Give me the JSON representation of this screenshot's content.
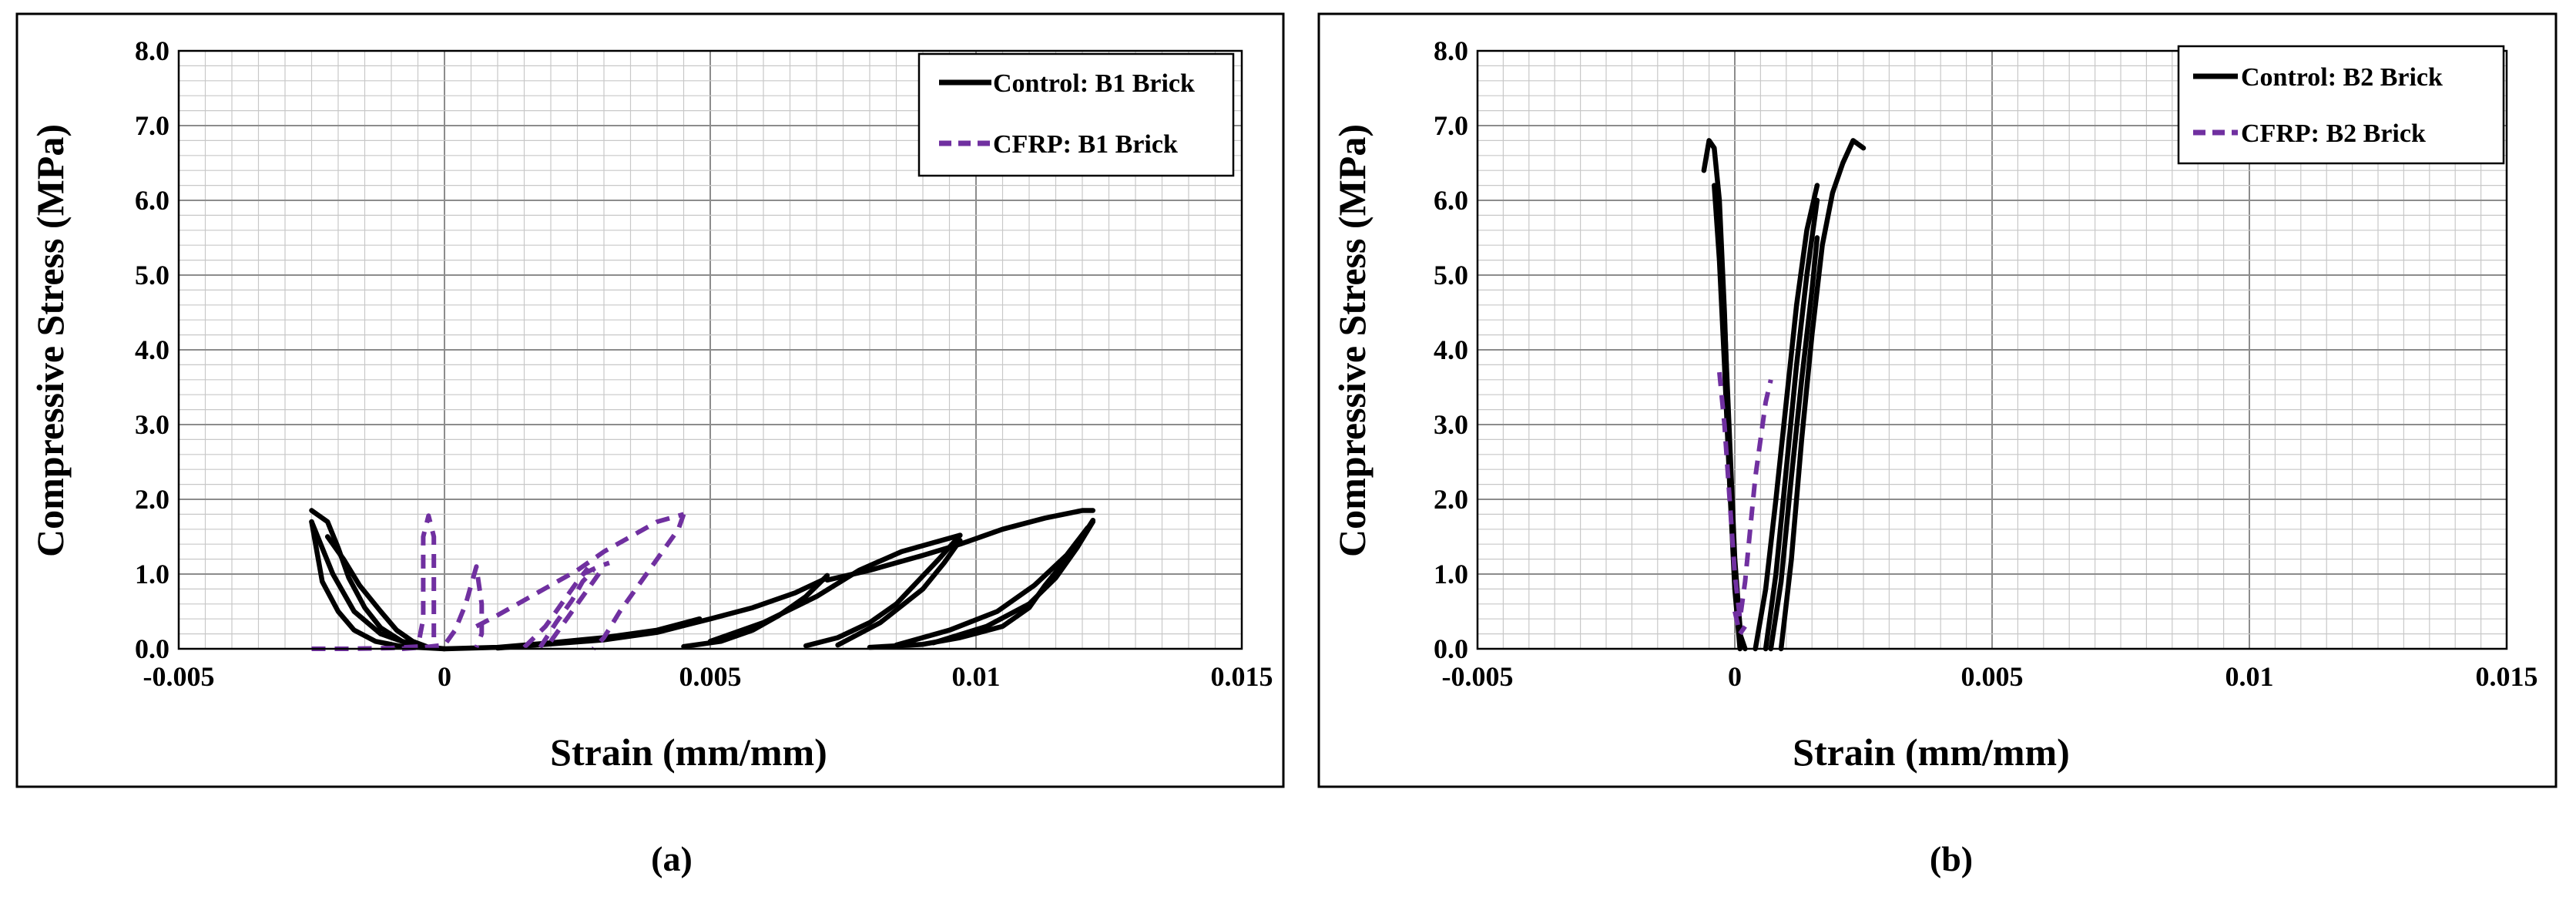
{
  "colors": {
    "control": "#000000",
    "cfrp": "#7030A0",
    "grid_minor": "#c8c8c8",
    "grid_major": "#8c8c8c"
  },
  "chart_data": [
    {
      "type": "line",
      "caption": "(a)",
      "xlabel": "Strain (mm/mm)",
      "ylabel": "Compressive Stress (MPa)",
      "xlim": [
        -0.005,
        0.015
      ],
      "ylim": [
        0,
        8
      ],
      "xticks": [
        -0.005,
        0,
        0.005,
        0.01,
        0.015
      ],
      "xtick_labels": [
        "-0.005",
        "0",
        "0.005",
        "0.01",
        "0.015"
      ],
      "yticks": [
        0,
        1,
        2,
        3,
        4,
        5,
        6,
        7,
        8
      ],
      "ytick_labels": [
        "0.0",
        "1.0",
        "2.0",
        "3.0",
        "4.0",
        "5.0",
        "6.0",
        "7.0",
        "8.0"
      ],
      "grid": true,
      "legend_position": "top-right",
      "series": [
        {
          "name": "Control: B1 Brick",
          "style": "solid",
          "color": "#000000",
          "segments": [
            [
              [
                -0.0025,
                1.85
              ],
              [
                -0.0022,
                1.7
              ],
              [
                -0.002,
                1.35
              ],
              [
                -0.0018,
                0.95
              ],
              [
                -0.0015,
                0.55
              ],
              [
                -0.0012,
                0.28
              ],
              [
                -0.0008,
                0.1
              ],
              [
                -0.0004,
                0.03
              ],
              [
                0,
                0
              ],
              [
                0.001,
                0.02
              ],
              [
                0.002,
                0.08
              ],
              [
                0.003,
                0.15
              ],
              [
                0.004,
                0.25
              ],
              [
                0.0048,
                0.4
              ]
            ],
            [
              [
                -0.0025,
                1.7
              ],
              [
                -0.0024,
                1.3
              ],
              [
                -0.0023,
                0.9
              ],
              [
                -0.002,
                0.5
              ],
              [
                -0.0017,
                0.25
              ],
              [
                -0.0013,
                0.1
              ],
              [
                -0.0008,
                0.03
              ],
              [
                0,
                0
              ]
            ],
            [
              [
                -0.0022,
                1.5
              ],
              [
                -0.0019,
                1.2
              ],
              [
                -0.0016,
                0.85
              ],
              [
                -0.0012,
                0.5
              ],
              [
                -0.0009,
                0.25
              ],
              [
                -0.0006,
                0.1
              ],
              [
                -0.0003,
                0.02
              ]
            ],
            [
              [
                -0.0025,
                1.7
              ],
              [
                -0.0021,
                1.0
              ],
              [
                -0.0017,
                0.5
              ],
              [
                -0.0012,
                0.2
              ],
              [
                -0.0006,
                0.05
              ]
            ],
            [
              [
                0.001,
                0.01
              ],
              [
                0.003,
                0.12
              ],
              [
                0.004,
                0.22
              ],
              [
                0.005,
                0.4
              ],
              [
                0.0058,
                0.55
              ],
              [
                0.0066,
                0.75
              ],
              [
                0.0072,
                0.95
              ]
            ],
            [
              [
                0.0072,
                0.98
              ],
              [
                0.0068,
                0.7
              ],
              [
                0.0063,
                0.45
              ],
              [
                0.0058,
                0.25
              ],
              [
                0.0052,
                0.1
              ],
              [
                0.0045,
                0.03
              ]
            ],
            [
              [
                0.005,
                0.1
              ],
              [
                0.006,
                0.35
              ],
              [
                0.007,
                0.7
              ],
              [
                0.0078,
                1.05
              ],
              [
                0.0086,
                1.3
              ],
              [
                0.0092,
                1.42
              ],
              [
                0.0097,
                1.52
              ]
            ],
            [
              [
                0.0097,
                1.52
              ],
              [
                0.0093,
                1.2
              ],
              [
                0.0089,
                0.9
              ],
              [
                0.0085,
                0.6
              ],
              [
                0.008,
                0.35
              ],
              [
                0.0074,
                0.15
              ],
              [
                0.0068,
                0.04
              ]
            ],
            [
              [
                0.0074,
                0.05
              ],
              [
                0.0082,
                0.35
              ],
              [
                0.009,
                0.8
              ],
              [
                0.0094,
                1.15
              ],
              [
                0.0097,
                1.45
              ]
            ],
            [
              [
                0.0072,
                0.92
              ],
              [
                0.008,
                1.05
              ],
              [
                0.009,
                1.25
              ],
              [
                0.0097,
                1.4
              ],
              [
                0.0105,
                1.6
              ],
              [
                0.0113,
                1.75
              ],
              [
                0.012,
                1.85
              ],
              [
                0.0122,
                1.85
              ]
            ],
            [
              [
                0.0122,
                1.72
              ],
              [
                0.012,
                1.5
              ],
              [
                0.0117,
                1.2
              ],
              [
                0.0113,
                0.85
              ],
              [
                0.011,
                0.55
              ],
              [
                0.0105,
                0.3
              ],
              [
                0.0097,
                0.15
              ],
              [
                0.009,
                0.06
              ],
              [
                0.008,
                0.02
              ]
            ],
            [
              [
                0.0092,
                0.08
              ],
              [
                0.0102,
                0.3
              ],
              [
                0.011,
                0.6
              ],
              [
                0.0115,
                0.95
              ],
              [
                0.0119,
                1.35
              ],
              [
                0.0122,
                1.7
              ]
            ],
            [
              [
                0.0085,
                0.05
              ],
              [
                0.0095,
                0.25
              ],
              [
                0.0104,
                0.5
              ],
              [
                0.0111,
                0.85
              ],
              [
                0.0117,
                1.25
              ],
              [
                0.0121,
                1.62
              ]
            ]
          ]
        },
        {
          "name": "CFRP: B1 Brick",
          "style": "dashed",
          "color": "#7030A0",
          "segments": [
            [
              [
                -0.0025,
                0
              ],
              [
                -0.0018,
                0
              ],
              [
                -0.001,
                0.01
              ],
              [
                -0.0005,
                0.03
              ],
              [
                -0.0004,
                0.4
              ],
              [
                -0.0004,
                1.0
              ],
              [
                -0.0004,
                1.5
              ],
              [
                -0.0003,
                1.78
              ],
              [
                -0.0002,
                1.5
              ],
              [
                -0.0002,
                0.9
              ],
              [
                -0.0002,
                0.4
              ],
              [
                -0.0002,
                0.1
              ],
              [
                -0.0002,
                0
              ]
            ],
            [
              [
                -0.0008,
                0
              ],
              [
                -0.0004,
                0.02
              ],
              [
                0,
                0.05
              ],
              [
                0.0002,
                0.25
              ],
              [
                0.0004,
                0.6
              ],
              [
                0.0006,
                1.1
              ],
              [
                0.0007,
                0.6
              ],
              [
                0.0007,
                0.2
              ],
              [
                0.0006,
                0.02
              ]
            ],
            [
              [
                0.0006,
                0.3
              ],
              [
                0.001,
                0.45
              ],
              [
                0.0015,
                0.65
              ],
              [
                0.002,
                0.85
              ],
              [
                0.0025,
                1.05
              ]
            ],
            [
              [
                0.0015,
                0.02
              ],
              [
                0.0019,
                0.3
              ],
              [
                0.0022,
                0.6
              ],
              [
                0.0025,
                0.9
              ],
              [
                0.0027,
                1.08
              ]
            ],
            [
              [
                0.0018,
                0.02
              ],
              [
                0.0021,
                0.35
              ],
              [
                0.0024,
                0.65
              ],
              [
                0.0026,
                0.9
              ],
              [
                0.0028,
                1.05
              ]
            ],
            [
              [
                0.002,
                0.1
              ],
              [
                0.0024,
                0.5
              ],
              [
                0.0028,
                0.9
              ],
              [
                0.003,
                1.1
              ]
            ],
            [
              [
                0.0025,
                1.05
              ],
              [
                0.003,
                1.3
              ],
              [
                0.0035,
                1.5
              ],
              [
                0.004,
                1.7
              ],
              [
                0.0045,
                1.8
              ]
            ],
            [
              [
                0.0045,
                1.8
              ],
              [
                0.0044,
                1.6
              ],
              [
                0.0041,
                1.3
              ],
              [
                0.0037,
                0.9
              ],
              [
                0.0033,
                0.5
              ],
              [
                0.003,
                0.15
              ],
              [
                0.0028,
                0
              ]
            ],
            [
              [
                0.0026,
                1.0
              ],
              [
                0.0029,
                1.1
              ],
              [
                0.0031,
                1.15
              ]
            ]
          ]
        }
      ]
    },
    {
      "type": "line",
      "caption": "(b)",
      "xlabel": "Strain (mm/mm)",
      "ylabel": "Compressive Stress (MPa)",
      "xlim": [
        -0.005,
        0.015
      ],
      "ylim": [
        0,
        8
      ],
      "xticks": [
        -0.005,
        0,
        0.005,
        0.01,
        0.015
      ],
      "xtick_labels": [
        "-0.005",
        "0",
        "0.005",
        "0.01",
        "0.015"
      ],
      "yticks": [
        0,
        1,
        2,
        3,
        4,
        5,
        6,
        7,
        8
      ],
      "ytick_labels": [
        "0.0",
        "1.0",
        "2.0",
        "3.0",
        "4.0",
        "5.0",
        "6.0",
        "7.0",
        "8.0"
      ],
      "grid": true,
      "legend_position": "top-right",
      "series": [
        {
          "name": "Control: B2 Brick",
          "style": "solid",
          "color": "#000000",
          "segments": [
            [
              [
                -0.0006,
                6.4
              ],
              [
                -0.0005,
                6.8
              ],
              [
                -0.0004,
                6.7
              ],
              [
                -0.0003,
                6.0
              ],
              [
                -0.0002,
                4.5
              ],
              [
                -0.0001,
                2.5
              ],
              [
                0,
                1.0
              ],
              [
                0.0001,
                0.2
              ],
              [
                0.0002,
                0
              ]
            ],
            [
              [
                -0.0004,
                6.2
              ],
              [
                -0.0003,
                5.2
              ],
              [
                -0.0002,
                3.8
              ],
              [
                -0.0001,
                2.2
              ],
              [
                0,
                0.8
              ],
              [
                0.0001,
                0
              ]
            ],
            [
              [
                -0.0003,
                5.8
              ],
              [
                -0.0002,
                4.4
              ],
              [
                -0.0001,
                2.8
              ],
              [
                0,
                1.2
              ],
              [
                0.0001,
                0.3
              ]
            ],
            [
              [
                0.0004,
                0
              ],
              [
                0.0006,
                0.8
              ],
              [
                0.0008,
                2.0
              ],
              [
                0.001,
                3.3
              ],
              [
                0.0012,
                4.6
              ],
              [
                0.0014,
                5.6
              ],
              [
                0.0016,
                6.2
              ]
            ],
            [
              [
                0.0006,
                0
              ],
              [
                0.0008,
                1.0
              ],
              [
                0.001,
                2.4
              ],
              [
                0.0012,
                3.8
              ],
              [
                0.0014,
                5.0
              ],
              [
                0.0016,
                6.0
              ]
            ],
            [
              [
                0.0007,
                0
              ],
              [
                0.0009,
                0.9
              ],
              [
                0.0011,
                2.3
              ],
              [
                0.0013,
                3.6
              ],
              [
                0.0015,
                4.8
              ],
              [
                0.0016,
                5.5
              ]
            ],
            [
              [
                0.0009,
                0
              ],
              [
                0.0011,
                1.2
              ],
              [
                0.0013,
                2.8
              ],
              [
                0.0015,
                4.2
              ],
              [
                0.0017,
                5.4
              ],
              [
                0.0019,
                6.1
              ],
              [
                0.0021,
                6.5
              ],
              [
                0.0023,
                6.8
              ],
              [
                0.0025,
                6.7
              ]
            ]
          ]
        },
        {
          "name": "CFRP: B2 Brick",
          "style": "dashed",
          "color": "#7030A0",
          "segments": [
            [
              [
                -0.0003,
                3.7
              ],
              [
                -0.0002,
                3.0
              ],
              [
                -0.0001,
                2.0
              ],
              [
                0,
                1.0
              ],
              [
                0.0001,
                0.4
              ],
              [
                0.0002,
                0.9
              ],
              [
                0.0003,
                1.6
              ],
              [
                0.0004,
                2.3
              ],
              [
                0.0005,
                2.8
              ],
              [
                0.0006,
                3.3
              ],
              [
                0.0007,
                3.6
              ]
            ],
            [
              [
                0,
                0.5
              ],
              [
                0.0001,
                0.2
              ],
              [
                0.0002,
                0.3
              ]
            ]
          ]
        }
      ]
    }
  ]
}
